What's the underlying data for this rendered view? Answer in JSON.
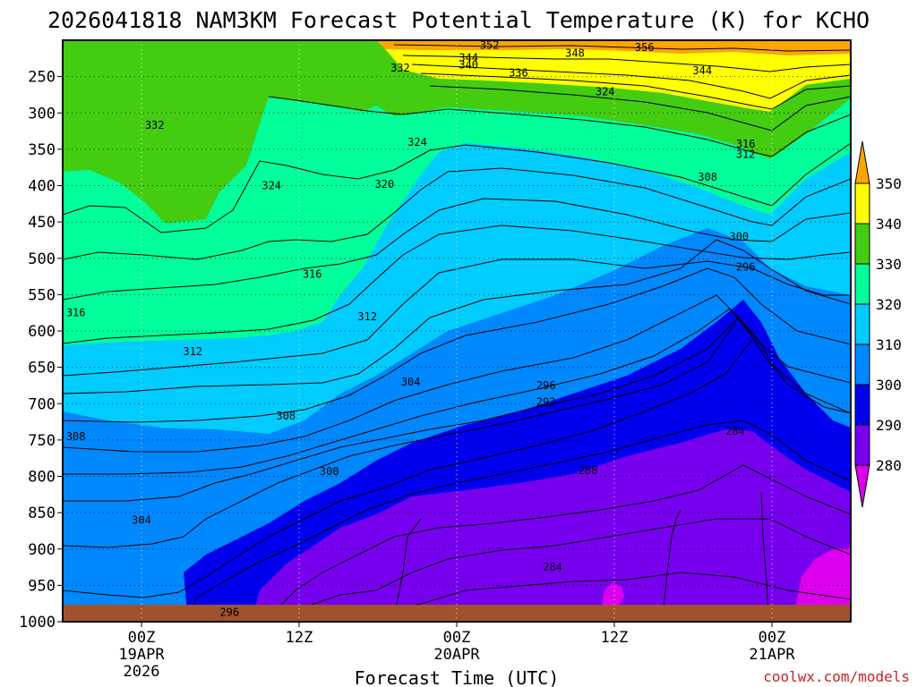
{
  "chart_data": {
    "type": "contour",
    "title": "2026041818 NAM3KM Forecast Potential Temperature (K) for KCHO",
    "xlabel": "Forecast Time (UTC)",
    "ylabel": "",
    "x_tick_labels": [
      {
        "time": "00Z",
        "date": "19APR",
        "year": "2026"
      },
      {
        "time": "12Z",
        "date": "",
        "year": ""
      },
      {
        "time": "00Z",
        "date": "20APR",
        "year": ""
      },
      {
        "time": "12Z",
        "date": "",
        "year": ""
      },
      {
        "time": "00Z",
        "date": "21APR",
        "year": ""
      }
    ],
    "x_tick_hours": [
      6,
      18,
      30,
      42,
      54
    ],
    "x_range_hours": [
      0,
      60
    ],
    "y_axis": "pressure (hPa), inverted",
    "y_range": [
      1000,
      200
    ],
    "y_ticks": [
      250,
      300,
      350,
      400,
      450,
      500,
      550,
      600,
      650,
      700,
      750,
      800,
      850,
      900,
      950,
      1000
    ],
    "grid": "dotted",
    "colorbar": {
      "labels": [
        "350",
        "340",
        "330",
        "320",
        "310",
        "300",
        "290",
        "280"
      ],
      "colors": [
        "#ffa500",
        "#ffff00",
        "#44cc11",
        "#00ff99",
        "#00ccff",
        "#0088ff",
        "#0000ee",
        "#7700ee",
        "#dd00ee"
      ]
    },
    "contour_labels": [
      {
        "value": "352",
        "hour": 32.5,
        "p": 207
      },
      {
        "value": "356",
        "hour": 44.3,
        "p": 210
      },
      {
        "value": "348",
        "hour": 39.0,
        "p": 218
      },
      {
        "value": "344",
        "hour": 30.9,
        "p": 224
      },
      {
        "value": "340",
        "hour": 30.9,
        "p": 234
      },
      {
        "value": "336",
        "hour": 34.7,
        "p": 245
      },
      {
        "value": "344",
        "hour": 48.7,
        "p": 242
      },
      {
        "value": "332",
        "hour": 25.7,
        "p": 238
      },
      {
        "value": "324",
        "hour": 41.3,
        "p": 271
      },
      {
        "value": "332",
        "hour": 7.0,
        "p": 317
      },
      {
        "value": "324",
        "hour": 27.0,
        "p": 340
      },
      {
        "value": "316",
        "hour": 52.0,
        "p": 343
      },
      {
        "value": "312",
        "hour": 52.0,
        "p": 357
      },
      {
        "value": "308",
        "hour": 49.1,
        "p": 388
      },
      {
        "value": "320",
        "hour": 24.5,
        "p": 398
      },
      {
        "value": "324",
        "hour": 15.9,
        "p": 400
      },
      {
        "value": "300",
        "hour": 51.5,
        "p": 470
      },
      {
        "value": "296",
        "hour": 52.0,
        "p": 512
      },
      {
        "value": "316",
        "hour": 19.0,
        "p": 522
      },
      {
        "value": "316",
        "hour": 1.0,
        "p": 575
      },
      {
        "value": "312",
        "hour": 23.2,
        "p": 580
      },
      {
        "value": "312",
        "hour": 9.9,
        "p": 628
      },
      {
        "value": "304",
        "hour": 26.5,
        "p": 670
      },
      {
        "value": "296",
        "hour": 36.8,
        "p": 675
      },
      {
        "value": "292",
        "hour": 36.8,
        "p": 698
      },
      {
        "value": "308",
        "hour": 17.0,
        "p": 717
      },
      {
        "value": "284",
        "hour": 51.2,
        "p": 738
      },
      {
        "value": "308",
        "hour": 1.0,
        "p": 745
      },
      {
        "value": "300",
        "hour": 20.3,
        "p": 793
      },
      {
        "value": "288",
        "hour": 40.0,
        "p": 792
      },
      {
        "value": "304",
        "hour": 6.0,
        "p": 860
      },
      {
        "value": "284",
        "hour": 37.3,
        "p": 925
      },
      {
        "value": "296",
        "hour": 12.7,
        "p": 987
      }
    ]
  },
  "credit": "coolwx.com/models"
}
